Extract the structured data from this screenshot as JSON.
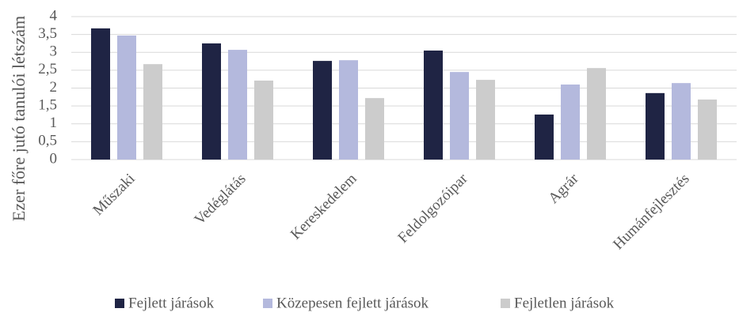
{
  "chart_data": {
    "type": "bar",
    "y_label": "Ezer főre jutó tanulói létszám",
    "categories": [
      "Műszaki",
      "Vedéglátás",
      "Kereskedelem",
      "Feldolgozóipar",
      "Agrár",
      "Humánfejlesztés"
    ],
    "series": [
      {
        "name": "Fejlett járások",
        "color": "#1f2444",
        "values": [
          3.67,
          3.25,
          2.76,
          3.05,
          1.26,
          1.86
        ]
      },
      {
        "name": "Közepesen fejlett járások",
        "color": "#b4b9dd",
        "values": [
          3.47,
          3.07,
          2.78,
          2.45,
          2.1,
          2.14
        ]
      },
      {
        "name": "Fejletlen járások",
        "color": "#cccccc",
        "values": [
          2.67,
          2.21,
          1.72,
          2.23,
          2.56,
          1.68
        ]
      }
    ],
    "ylim": [
      0,
      4
    ],
    "yticks": [
      0,
      {
        "value": 0.5,
        "label": "0,5"
      },
      1,
      {
        "value": 1.5,
        "label": "1,5"
      },
      2,
      {
        "value": 2.5,
        "label": "2,5"
      },
      3,
      {
        "value": 3.5,
        "label": "3,5"
      },
      4
    ],
    "grid": true,
    "legend": "bottom"
  }
}
